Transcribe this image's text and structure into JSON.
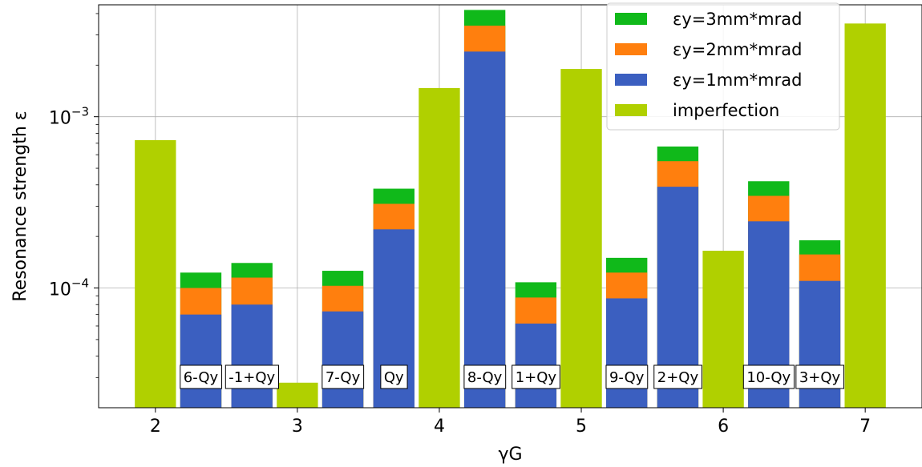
{
  "chart_data": {
    "type": "bar",
    "stacked": true,
    "xlabel": "γG",
    "ylabel": "Resonance strength ε",
    "yscale": "log",
    "ylim": [
      2e-05,
      0.0045
    ],
    "xlim": [
      1.6,
      7.4
    ],
    "xticks": [
      2,
      3,
      4,
      5,
      6,
      7
    ],
    "yticks": [
      {
        "value": 0.001,
        "base": "10",
        "exp": "−3"
      },
      {
        "value": 0.0001,
        "base": "10",
        "exp": "−4"
      }
    ],
    "grid": true,
    "legend_position": "top-right",
    "colors": {
      "e1": "#3b5fc0",
      "e2": "#ff7f0e",
      "e3": "#10b91a",
      "imperfection": "#b0d000"
    },
    "series": [
      {
        "key": "e3",
        "name": "εy=3mm*mrad"
      },
      {
        "key": "e2",
        "name": "εy=2mm*mrad"
      },
      {
        "key": "e1",
        "name": "εy=1mm*mrad"
      },
      {
        "key": "imperfection",
        "name": "imperfection"
      }
    ],
    "intrinsic": [
      {
        "label": "6-Qy",
        "x": 2.32,
        "e1": 7e-05,
        "e2": 0.0001,
        "e3": 0.000123
      },
      {
        "label": "-1+Qy",
        "x": 2.68,
        "e1": 8e-05,
        "e2": 0.000115,
        "e3": 0.00014
      },
      {
        "label": "7-Qy",
        "x": 3.32,
        "e1": 7.3e-05,
        "e2": 0.000103,
        "e3": 0.000126
      },
      {
        "label": "Qy",
        "x": 3.68,
        "e1": 0.00022,
        "e2": 0.00031,
        "e3": 0.00038
      },
      {
        "label": "8-Qy",
        "x": 4.32,
        "e1": 0.0024,
        "e2": 0.0034,
        "e3": 0.0042
      },
      {
        "label": "1+Qy",
        "x": 4.68,
        "e1": 6.2e-05,
        "e2": 8.8e-05,
        "e3": 0.000108
      },
      {
        "label": "9-Qy",
        "x": 5.32,
        "e1": 8.7e-05,
        "e2": 0.000123,
        "e3": 0.00015
      },
      {
        "label": "2+Qy",
        "x": 5.68,
        "e1": 0.00039,
        "e2": 0.00055,
        "e3": 0.00067
      },
      {
        "label": "10-Qy",
        "x": 6.32,
        "e1": 0.000245,
        "e2": 0.000345,
        "e3": 0.00042
      },
      {
        "label": "3+Qy",
        "x": 6.68,
        "e1": 0.00011,
        "e2": 0.000157,
        "e3": 0.00019
      }
    ],
    "imperfection": [
      {
        "x": 2,
        "value": 0.00073
      },
      {
        "x": 3,
        "value": 2.8e-05
      },
      {
        "x": 4,
        "value": 0.00147
      },
      {
        "x": 5,
        "value": 0.0019
      },
      {
        "x": 6,
        "value": 0.000165
      },
      {
        "x": 7,
        "value": 0.0035
      }
    ]
  }
}
